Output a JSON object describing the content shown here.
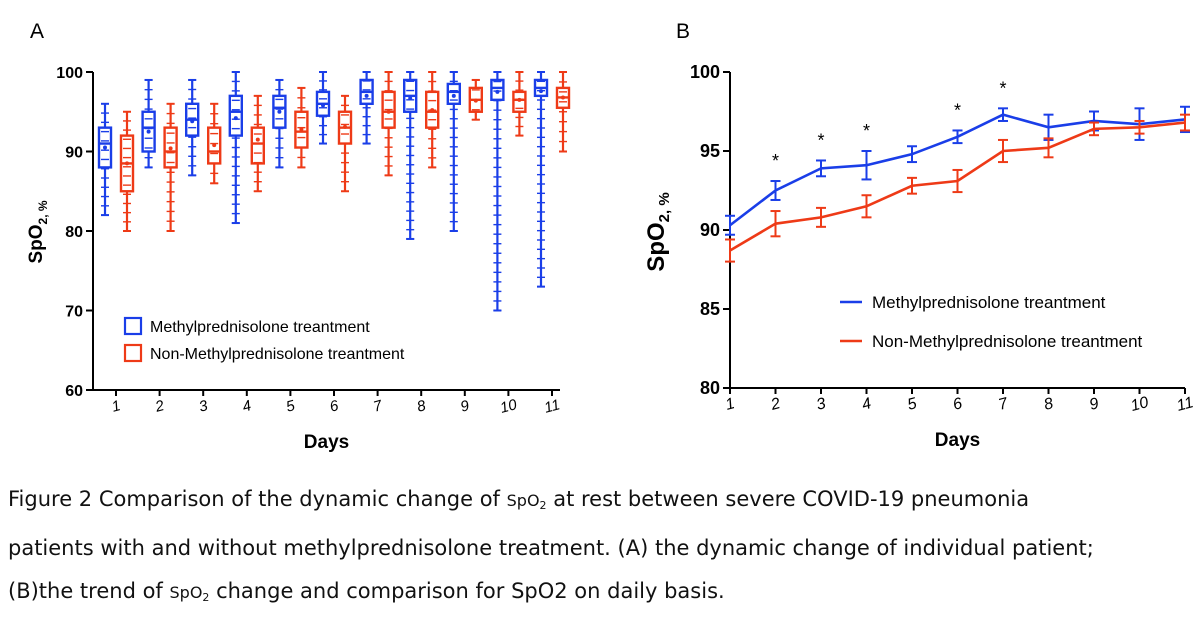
{
  "panel_labels": [
    "A",
    "B"
  ],
  "chart_data": [
    {
      "type": "box",
      "panel": "A",
      "xlabel": "Days",
      "ylabel": {
        "main": "SpO",
        "sub": "2, %"
      },
      "ylim": [
        60,
        100
      ],
      "yticks": [
        60,
        70,
        80,
        90,
        100
      ],
      "categories": [
        "1",
        "2",
        "3",
        "4",
        "5",
        "6",
        "7",
        "8",
        "9",
        "10",
        "11"
      ],
      "legend_position": "bottom-left",
      "series": [
        {
          "name": "Methylprednisolone treantment",
          "color": "#1a3ee8",
          "boxes": [
            {
              "min": 82,
              "q1": 88,
              "median": 91,
              "mean": 90.5,
              "q3": 93,
              "max": 96
            },
            {
              "min": 88,
              "q1": 90,
              "median": 93,
              "mean": 92.5,
              "q3": 95,
              "max": 99
            },
            {
              "min": 87,
              "q1": 92,
              "median": 94,
              "mean": 93.8,
              "q3": 96,
              "max": 99
            },
            {
              "min": 81,
              "q1": 92,
              "median": 95,
              "mean": 94.2,
              "q3": 97,
              "max": 100
            },
            {
              "min": 88,
              "q1": 93,
              "median": 95.5,
              "mean": 95,
              "q3": 97,
              "max": 99
            },
            {
              "min": 91,
              "q1": 94.5,
              "median": 96,
              "mean": 95.8,
              "q3": 97.5,
              "max": 100
            },
            {
              "min": 91,
              "q1": 96,
              "median": 97.5,
              "mean": 97,
              "q3": 99,
              "max": 100
            },
            {
              "min": 79,
              "q1": 95,
              "median": 97,
              "mean": 96.7,
              "q3": 99,
              "max": 100
            },
            {
              "min": 80,
              "q1": 96,
              "median": 97.5,
              "mean": 97,
              "q3": 98.5,
              "max": 100
            },
            {
              "min": 70,
              "q1": 96.5,
              "median": 98,
              "mean": 97.5,
              "q3": 99,
              "max": 100
            },
            {
              "min": 73,
              "q1": 97,
              "median": 98,
              "mean": 97.6,
              "q3": 99,
              "max": 100
            }
          ]
        },
        {
          "name": "Non-Methylprednisolone treantment",
          "color": "#ee3a17",
          "boxes": [
            {
              "min": 80,
              "q1": 85,
              "median": 88.5,
              "mean": 88.5,
              "q3": 92,
              "max": 95
            },
            {
              "min": 80,
              "q1": 88,
              "median": 90,
              "mean": 90.4,
              "q3": 93,
              "max": 96
            },
            {
              "min": 86,
              "q1": 88.5,
              "median": 90,
              "mean": 90.8,
              "q3": 93,
              "max": 96
            },
            {
              "min": 85,
              "q1": 88.5,
              "median": 91,
              "mean": 91.5,
              "q3": 93,
              "max": 97
            },
            {
              "min": 88,
              "q1": 90.5,
              "median": 92.5,
              "mean": 92.8,
              "q3": 95,
              "max": 98
            },
            {
              "min": 85,
              "q1": 91,
              "median": 93,
              "mean": 93.1,
              "q3": 95,
              "max": 97
            },
            {
              "min": 87,
              "q1": 93,
              "median": 95,
              "mean": 95,
              "q3": 97.5,
              "max": 100
            },
            {
              "min": 88,
              "q1": 93,
              "median": 95,
              "mean": 95.2,
              "q3": 97.5,
              "max": 100
            },
            {
              "min": 94,
              "q1": 95,
              "median": 96.5,
              "mean": 96.4,
              "q3": 98,
              "max": 99
            },
            {
              "min": 92,
              "q1": 95,
              "median": 96.5,
              "mean": 96.5,
              "q3": 97.5,
              "max": 100
            },
            {
              "min": 90,
              "q1": 95.5,
              "median": 96.8,
              "mean": 96.8,
              "q3": 98,
              "max": 100
            }
          ]
        }
      ]
    },
    {
      "type": "line",
      "panel": "B",
      "xlabel": "Days",
      "ylabel": {
        "main": "SpO",
        "sub": "2, %"
      },
      "ylim": [
        80,
        100
      ],
      "yticks": [
        80,
        85,
        90,
        95,
        100
      ],
      "x": [
        "1",
        "2",
        "3",
        "4",
        "5",
        "6",
        "7",
        "8",
        "9",
        "10",
        "11"
      ],
      "legend_position": "bottom-right",
      "significance": {
        "symbol": "*",
        "days": [
          "2",
          "3",
          "4",
          "6",
          "7"
        ]
      },
      "series": [
        {
          "name": "Methylprednisolone treantment",
          "color": "#1a3ee8",
          "values": [
            90.3,
            92.5,
            93.9,
            94.1,
            94.8,
            95.9,
            97.3,
            96.5,
            96.9,
            96.7,
            97.0
          ],
          "errors": [
            0.6,
            0.6,
            0.5,
            0.9,
            0.5,
            0.4,
            0.4,
            0.8,
            0.6,
            1.0,
            0.8
          ]
        },
        {
          "name": "Non-Methylprednisolone treantment",
          "color": "#ee3a17",
          "values": [
            88.7,
            90.4,
            90.8,
            91.5,
            92.8,
            93.1,
            95.0,
            95.2,
            96.4,
            96.5,
            96.8
          ],
          "errors": [
            0.7,
            0.8,
            0.6,
            0.7,
            0.5,
            0.7,
            0.7,
            0.6,
            0.4,
            0.4,
            0.5
          ]
        }
      ]
    }
  ],
  "caption": {
    "line1_a": "Figure 2 Comparison of the dynamic change of ",
    "spo": "SpO",
    "two": "2",
    "line1_b": " at rest between severe COVID-19 pneumonia",
    "line2": "patients with and without methylprednisolone treatment. (A) the dynamic change of individual patient;",
    "line3_a": "(B)the trend of ",
    "line3_b": " change and comparison for SpO2 on daily basis."
  }
}
